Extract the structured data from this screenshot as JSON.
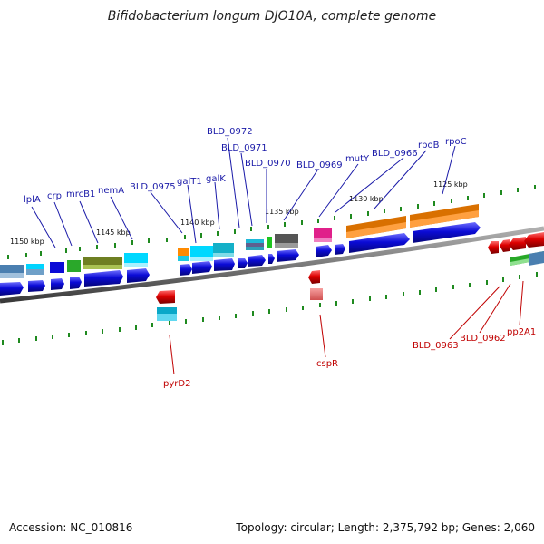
{
  "title": "Bifidobacterium longum DJO10A, complete genome",
  "footer": {
    "accession": "Accession: NC_010816",
    "topology": "Topology: circular; Length: 2,375,792 bp; Genes: 2,060"
  },
  "ticks": [
    "1150 kbp",
    "1145 kbp",
    "1140 kbp",
    "1135 kbp",
    "1130 kbp",
    "1125 kbp"
  ],
  "forward_labels": [
    "lplA",
    "crp",
    "mrcB1",
    "nemA",
    "BLD_0975",
    "galT1",
    "galK",
    "BLD_0972",
    "BLD_0971",
    "BLD_0970",
    "BLD_0969",
    "mutY",
    "BLD_0966",
    "rpoB",
    "rpoC"
  ],
  "reverse_labels": [
    "pyrD2",
    "cspR",
    "BLD_0963",
    "BLD_0962",
    "pp2A1"
  ],
  "colors": {
    "forward_gene": "#0b0bd6",
    "reverse_gene": "#dd0000",
    "backbone": "#7a7a7a",
    "forward_label": "#1a1aa8",
    "reverse_label": "#c00000",
    "tick_dot": "#1f8a1f"
  }
}
